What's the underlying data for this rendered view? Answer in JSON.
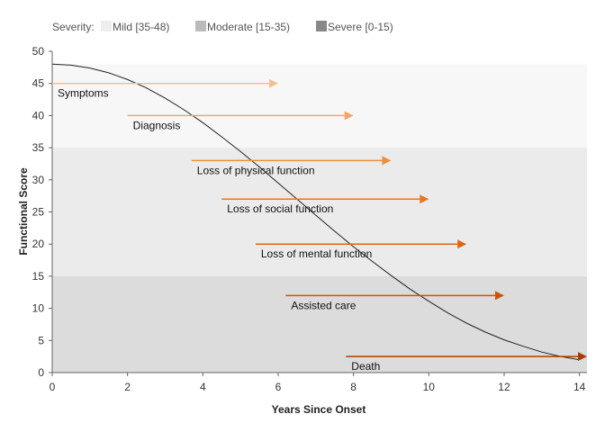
{
  "legend": {
    "title": "Severity:",
    "items": [
      {
        "label": "Mild [35-48)",
        "swatch_color": "#eeeeee"
      },
      {
        "label": "Moderate [15-35)",
        "swatch_color": "#bbbbbb"
      },
      {
        "label": "Severe [0-15)",
        "swatch_color": "#888888"
      }
    ]
  },
  "chart_data": {
    "type": "line",
    "title": "",
    "xlabel": "Years Since Onset",
    "ylabel": "Functional Score",
    "xlim": [
      0,
      14.2
    ],
    "ylim": [
      0,
      50
    ],
    "xticks": [
      0,
      2,
      4,
      6,
      8,
      10,
      12,
      14
    ],
    "yticks": [
      0,
      5,
      10,
      15,
      20,
      25,
      30,
      35,
      40,
      45,
      50
    ],
    "grid": false,
    "legend_position": "top-left",
    "bands": [
      {
        "label": "Severe [0-15)",
        "from": 0,
        "to": 15,
        "color": "#dcdcdc"
      },
      {
        "label": "Moderate [15-35)",
        "from": 15,
        "to": 35,
        "color": "#ebebeb"
      },
      {
        "label": "Mild [35-48)",
        "from": 35,
        "to": 48,
        "color": "#f7f7f7"
      }
    ],
    "curve": {
      "color": "#222222",
      "x": [
        0,
        0.5,
        1,
        1.5,
        2,
        2.5,
        3,
        3.5,
        4,
        4.5,
        5,
        5.5,
        6,
        6.5,
        7,
        7.5,
        8,
        8.5,
        9,
        9.5,
        10,
        10.5,
        11,
        11.5,
        12,
        12.5,
        13,
        13.5,
        14
      ],
      "y": [
        48,
        47.85,
        47.4,
        46.65,
        45.6,
        44.3,
        42.7,
        40.9,
        38.9,
        36.7,
        34.4,
        32,
        29.5,
        27,
        24.5,
        22,
        19.6,
        17.3,
        15.1,
        13,
        11.1,
        9.3,
        7.7,
        6.3,
        5.1,
        4.1,
        3.2,
        2.5,
        2
      ]
    },
    "annotations": [
      {
        "label": "Symptoms",
        "x_start": 0,
        "x_end": 6,
        "y": 45,
        "color": "#f5c08f"
      },
      {
        "label": "Diagnosis",
        "x_start": 2,
        "x_end": 8,
        "y": 40,
        "color": "#f2a763"
      },
      {
        "label": "Loss of physical function",
        "x_start": 3.7,
        "x_end": 9,
        "y": 33,
        "color": "#ee8e3c"
      },
      {
        "label": "Loss of social function",
        "x_start": 4.5,
        "x_end": 10,
        "y": 27,
        "color": "#e87722"
      },
      {
        "label": "Loss of mental function",
        "x_start": 5.4,
        "x_end": 11,
        "y": 20,
        "color": "#de6610"
      },
      {
        "label": "Assisted care",
        "x_start": 6.2,
        "x_end": 12,
        "y": 12,
        "color": "#cc5208"
      },
      {
        "label": "Death",
        "x_start": 7.8,
        "x_end": 14.2,
        "y": 2.5,
        "color": "#a83e05"
      }
    ]
  }
}
